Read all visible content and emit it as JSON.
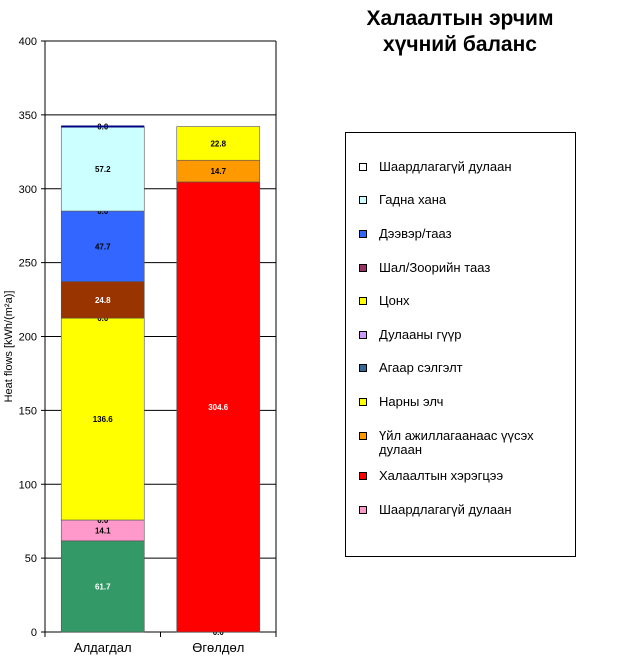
{
  "title": [
    "Халаалтын эрчим",
    "хүчний баланс"
  ],
  "chart_data": {
    "type": "stacked-bar",
    "title": "Халаалтын эрчим хүчний баланс",
    "ylabel": "Heat flows [kWh/(m²a)]",
    "xlabel": "",
    "ylim": [
      0,
      400
    ],
    "yticks": [
      0,
      50,
      100,
      150,
      200,
      250,
      300,
      350,
      400
    ],
    "grid": true,
    "legend_position": "right",
    "categories": [
      "Алдагдал",
      "Өгөлдөл"
    ],
    "stacks": [
      {
        "category": "Алдагдал",
        "segments": [
          {
            "name": "Шаардлагагүй дулаан",
            "value": 61.7,
            "label": "61.7",
            "color": "#339966",
            "text_color": "#ffffff"
          },
          {
            "name": "Шаардлагагүй дулаан (ягаан)",
            "value": 14.1,
            "label": "14.1",
            "color": "#ff99cc",
            "text_color": "#000000"
          },
          {
            "name": "Агаар сэлгэлт",
            "value": 0.0,
            "label": "0.0",
            "color": "#336699",
            "text_color": "#000000"
          },
          {
            "name": "Цонх",
            "value": 136.6,
            "label": "136.6",
            "color": "#ffff00",
            "text_color": "#000000"
          },
          {
            "name": "Шал/Зоорийн тааз",
            "value": 0.0,
            "label": "0.0",
            "color": "#993366",
            "text_color": "#000000"
          },
          {
            "name": "Шал/Зоорийн тааз (хүрэн)",
            "value": 24.8,
            "label": "24.8",
            "color": "#993300",
            "text_color": "#ffffff"
          },
          {
            "name": "Дээвэр/тааз",
            "value": 47.7,
            "label": "47.7",
            "color": "#3366ff",
            "text_color": "#000000"
          },
          {
            "name": "Гадна хана",
            "value": 0.0,
            "label": "0.0",
            "color": "#ccffff",
            "text_color": "#000000"
          },
          {
            "name": "Гадна хана (цэнхэр)",
            "value": 57.2,
            "label": "57.2",
            "color": "#ccffff",
            "text_color": "#000000"
          },
          {
            "name": "Шаардлагагүй дулаан (дээд)",
            "value": 0.0,
            "label": "0.0",
            "color": "#ffffff",
            "text_color": "#000000"
          }
        ]
      },
      {
        "category": "Өгөлдөл",
        "segments": [
          {
            "name": "Халаалтын хэрэгцээ",
            "value": 0.0,
            "label": "0.0",
            "color": "#ff0000",
            "text_color": "#000000"
          },
          {
            "name": "Халаалтын хэрэгцээ",
            "value": 304.6,
            "label": "304.6",
            "color": "#ff0000",
            "text_color": "#ffffff"
          },
          {
            "name": "Үйл ажиллагаанаас үүсэх дулаан",
            "value": 14.7,
            "label": "14.7",
            "color": "#ff9900",
            "text_color": "#000000"
          },
          {
            "name": "Нарны элч",
            "value": 22.8,
            "label": "22.8",
            "color": "#ffff00",
            "text_color": "#000000"
          }
        ]
      }
    ],
    "legend": [
      {
        "label": "Шаардлагагүй дулаан",
        "color": "#ffffff"
      },
      {
        "label": "Гадна хана",
        "color": "#ccffff"
      },
      {
        "label": "Дээвэр/тааз",
        "color": "#3366ff"
      },
      {
        "label": "Шал/Зоорийн тааз",
        "color": "#993366"
      },
      {
        "label": "Цонх",
        "color": "#ffff00"
      },
      {
        "label": "Дулааны гүүр",
        "color": "#cc99ff"
      },
      {
        "label": "Агаар сэлгэлт",
        "color": "#336699"
      },
      {
        "label": "Нарны элч",
        "color": "#ffff00"
      },
      {
        "label": "Үйл ажиллагаанаас үүсэх дулаан",
        "color": "#ff9900"
      },
      {
        "label": "Халаалтын хэрэгцээ",
        "color": "#ff0000"
      },
      {
        "label": "Шаардлагагүй дулаан",
        "color": "#ff99cc"
      }
    ]
  }
}
